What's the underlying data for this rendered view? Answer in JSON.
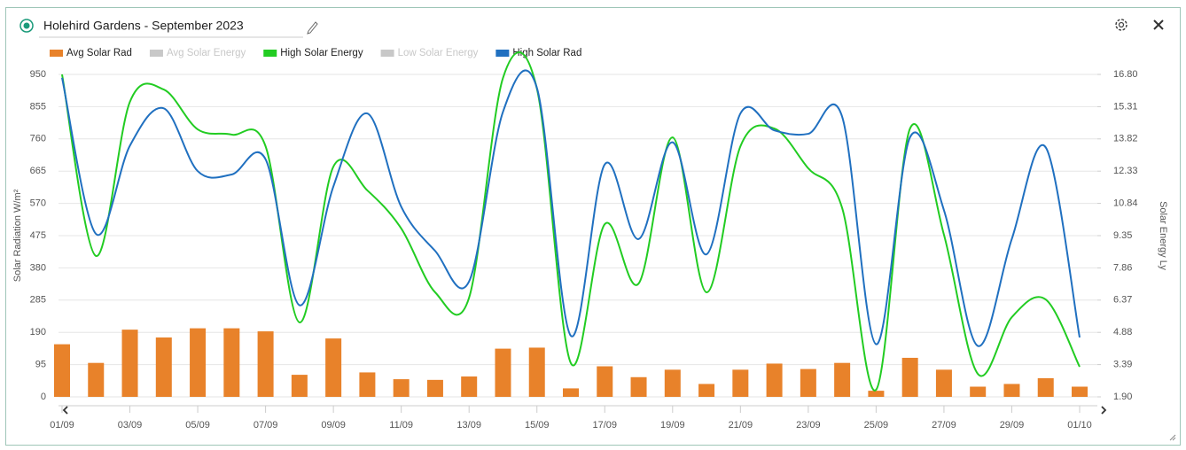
{
  "chart_data": {
    "type": "combo",
    "title": "Holehird Gardens - September 2023",
    "y_label": "Solar Radiation W/m²",
    "y2_label": "Solar Energy Ly",
    "categories": [
      "01/09",
      null,
      "03/09",
      null,
      "05/09",
      null,
      "07/09",
      null,
      "09/09",
      null,
      "11/09",
      null,
      "13/09",
      null,
      "15/09",
      null,
      "17/09",
      null,
      "19/09",
      null,
      "21/09",
      null,
      "23/09",
      null,
      "25/09",
      null,
      "27/09",
      null,
      "29/09",
      null,
      "01/10"
    ],
    "ylim": [
      0,
      950
    ],
    "yticks": [
      0,
      95,
      190,
      285,
      380,
      475,
      570,
      665,
      760,
      855,
      950
    ],
    "y2lim": [
      1.9,
      16.8
    ],
    "y2ticks": [
      {
        "value": 1.9,
        "label": "1.90"
      },
      {
        "value": 3.39,
        "label": "3.39"
      },
      {
        "value": 4.88,
        "label": "4.88"
      },
      {
        "value": 6.37,
        "label": "6.37"
      },
      {
        "value": 7.86,
        "label": "7.86"
      },
      {
        "value": 9.35,
        "label": "9.35"
      },
      {
        "value": 10.84,
        "label": "10.84"
      },
      {
        "value": 12.33,
        "label": "12.33"
      },
      {
        "value": 13.82,
        "label": "13.82"
      },
      {
        "value": 15.31,
        "label": "15.31"
      },
      {
        "value": 16.8,
        "label": "16.80"
      }
    ],
    "grid": true,
    "series": [
      {
        "name": "Avg Solar Rad",
        "type": "bar",
        "color": "#e8822a",
        "values": [
          155,
          100,
          198,
          175,
          202,
          202,
          193,
          65,
          172,
          72,
          52,
          50,
          60,
          142,
          145,
          25,
          90,
          58,
          80,
          38,
          80,
          98,
          82,
          100,
          18,
          115,
          80,
          30,
          38,
          55,
          30
        ]
      },
      {
        "name": "Avg Solar Energy",
        "type": "line",
        "color": "#c8c8c8",
        "hidden": true
      },
      {
        "name": "High Solar Energy",
        "type": "line",
        "axis": "y2",
        "color": "#22cc22",
        "values": [
          16.8,
          8.41,
          15.53,
          16.1,
          14.26,
          14.02,
          13.48,
          5.34,
          12.54,
          11.44,
          9.68,
          6.73,
          6.48,
          16.64,
          16.14,
          3.46,
          9.88,
          7.14,
          13.89,
          6.73,
          13.48,
          14.3,
          12.46,
          10.62,
          2.23,
          14.3,
          9.39,
          2.96,
          5.58,
          6.4,
          3.29
        ]
      },
      {
        "name": "Low Solar Energy",
        "type": "line",
        "color": "#c8c8c8",
        "hidden": true
      },
      {
        "name": "High Solar Rad",
        "type": "line",
        "color": "#2070c0",
        "values": [
          940,
          480,
          740,
          850,
          665,
          655,
          700,
          270,
          620,
          835,
          560,
          430,
          340,
          840,
          910,
          180,
          685,
          465,
          750,
          420,
          835,
          785,
          775,
          825,
          155,
          765,
          550,
          150,
          465,
          735,
          175
        ]
      }
    ]
  }
}
